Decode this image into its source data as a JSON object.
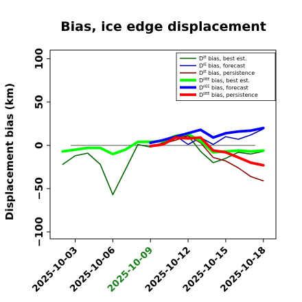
{
  "chart_data": {
    "type": "line",
    "title": "Bias, ice edge displacement",
    "ylabel": "Displacement bias (km)",
    "xlabel": "",
    "ylim": [
      -108,
      110
    ],
    "xlim": [
      "2025-10-01",
      "2025-10-19"
    ],
    "yticks": [
      -100,
      -50,
      0,
      50,
      100
    ],
    "ytick_labels": [
      "−100",
      "−50",
      "0",
      "50",
      "100"
    ],
    "xticks": [
      "2025-10-03",
      "2025-10-06",
      "2025-10-09",
      "2025-10-12",
      "2025-10-15",
      "2025-10-18"
    ],
    "xtick_colors": [
      "#000000",
      "#000000",
      "#1a7f1a",
      "#000000",
      "#000000",
      "#000000"
    ],
    "zero_line": true,
    "grid": false,
    "legend_position": "top-right",
    "series": [
      {
        "name": "D^IE bias, best est.",
        "name_base": "D",
        "name_sup": "IE",
        "name_rest": " bias, best est.",
        "color": "#006400",
        "width": "thin",
        "x": [
          "2025-10-02",
          "2025-10-03",
          "2025-10-04",
          "2025-10-05",
          "2025-10-06",
          "2025-10-07",
          "2025-10-08",
          "2025-10-09",
          "2025-10-10",
          "2025-10-11",
          "2025-10-12",
          "2025-10-13",
          "2025-10-14",
          "2025-10-15",
          "2025-10-16",
          "2025-10-17",
          "2025-10-18"
        ],
        "y": [
          -22,
          -12,
          -9,
          -22,
          -57,
          -28,
          1,
          -2,
          3,
          10,
          11,
          -7,
          -20,
          -15,
          -8,
          -10,
          -7
        ]
      },
      {
        "name": "D^IE bias, forecast",
        "name_base": "D",
        "name_sup": "IE",
        "name_rest": " bias, forecast",
        "color": "#0000aa",
        "width": "thin",
        "x": [
          "2025-10-09",
          "2025-10-10",
          "2025-10-11",
          "2025-10-12",
          "2025-10-13",
          "2025-10-14",
          "2025-10-15",
          "2025-10-16",
          "2025-10-17",
          "2025-10-18"
        ],
        "y": [
          2,
          6,
          11,
          1,
          9,
          1,
          10,
          7,
          12,
          19
        ]
      },
      {
        "name": "D^IE bias, persistence",
        "name_base": "D",
        "name_sup": "IE",
        "name_rest": " bias, persistence",
        "color": "#8b0000",
        "width": "thin",
        "x": [
          "2025-10-09",
          "2025-10-10",
          "2025-10-11",
          "2025-10-12",
          "2025-10-13",
          "2025-10-14",
          "2025-10-15",
          "2025-10-16",
          "2025-10-17",
          "2025-10-18"
        ],
        "y": [
          0,
          2,
          6,
          11,
          3,
          -14,
          -18,
          -26,
          -36,
          -41
        ]
      },
      {
        "name": "D^IIEE bias, best est.",
        "name_base": "D",
        "name_sup": "IIEE",
        "name_rest": " bias, best est.",
        "color": "#00ff00",
        "width": "thick",
        "x": [
          "2025-10-02",
          "2025-10-03",
          "2025-10-04",
          "2025-10-05",
          "2025-10-06",
          "2025-10-07",
          "2025-10-08",
          "2025-10-09",
          "2025-10-10",
          "2025-10-11",
          "2025-10-12",
          "2025-10-13",
          "2025-10-14",
          "2025-10-15",
          "2025-10-16",
          "2025-10-17",
          "2025-10-18"
        ],
        "y": [
          -7,
          -5,
          -3,
          -3,
          -10,
          -5,
          4,
          4,
          5,
          11,
          13,
          5,
          -8,
          -7,
          -6,
          -7,
          -6
        ]
      },
      {
        "name": "D^IIEE bias, forecast",
        "name_base": "D",
        "name_sup": "IIEE",
        "name_rest": " bias, forecast",
        "color": "#0000ff",
        "width": "thick",
        "x": [
          "2025-10-09",
          "2025-10-10",
          "2025-10-11",
          "2025-10-12",
          "2025-10-13",
          "2025-10-14",
          "2025-10-15",
          "2025-10-16",
          "2025-10-17",
          "2025-10-18"
        ],
        "y": [
          3,
          6,
          10,
          14,
          18,
          9,
          14,
          16,
          17,
          20
        ]
      },
      {
        "name": "D^IIEE bias, persistence",
        "name_base": "D",
        "name_sup": "IIEE",
        "name_rest": " bias, persistence",
        "color": "#ff0000",
        "width": "thick",
        "x": [
          "2025-10-09",
          "2025-10-10",
          "2025-10-11",
          "2025-10-12",
          "2025-10-13",
          "2025-10-14",
          "2025-10-15",
          "2025-10-16",
          "2025-10-17",
          "2025-10-18"
        ],
        "y": [
          -1,
          1,
          9,
          8,
          9,
          -6,
          -8,
          -14,
          -20,
          -23
        ]
      }
    ]
  }
}
